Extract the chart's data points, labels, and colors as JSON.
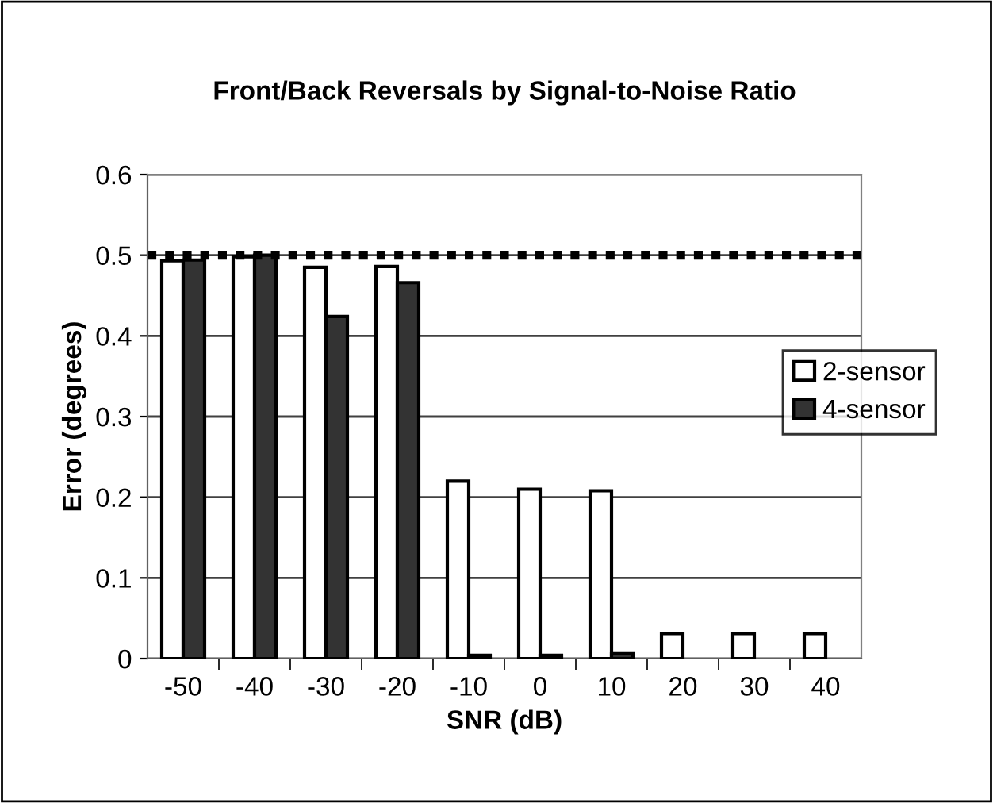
{
  "chart_data": {
    "type": "bar",
    "title": "Front/Back Reversals by Signal-to-Noise Ratio",
    "xlabel": "SNR (dB)",
    "ylabel": "Error (degrees)",
    "categories": [
      "-50",
      "-40",
      "-30",
      "-20",
      "-10",
      "0",
      "10",
      "20",
      "30",
      "40"
    ],
    "series": [
      {
        "name": "2-sensor",
        "color": "#ffffff",
        "values": [
          0.493,
          0.498,
          0.485,
          0.486,
          0.22,
          0.21,
          0.208,
          0.031,
          0.031,
          0.031
        ]
      },
      {
        "name": "4-sensor",
        "color": "#333333",
        "values": [
          0.494,
          0.5,
          0.424,
          0.466,
          0.004,
          0.004,
          0.006,
          null,
          null,
          null
        ]
      }
    ],
    "ylim": [
      0,
      0.6
    ],
    "yticks": [
      {
        "value": 0,
        "label": "0"
      },
      0.1,
      0.2,
      0.3,
      0.4,
      0.5,
      0.6
    ],
    "grid": "y",
    "legend": "right",
    "ref_lines": [
      {
        "axis": "y",
        "value": 0.5,
        "color": "#000000",
        "line_style": "dotted"
      }
    ]
  }
}
